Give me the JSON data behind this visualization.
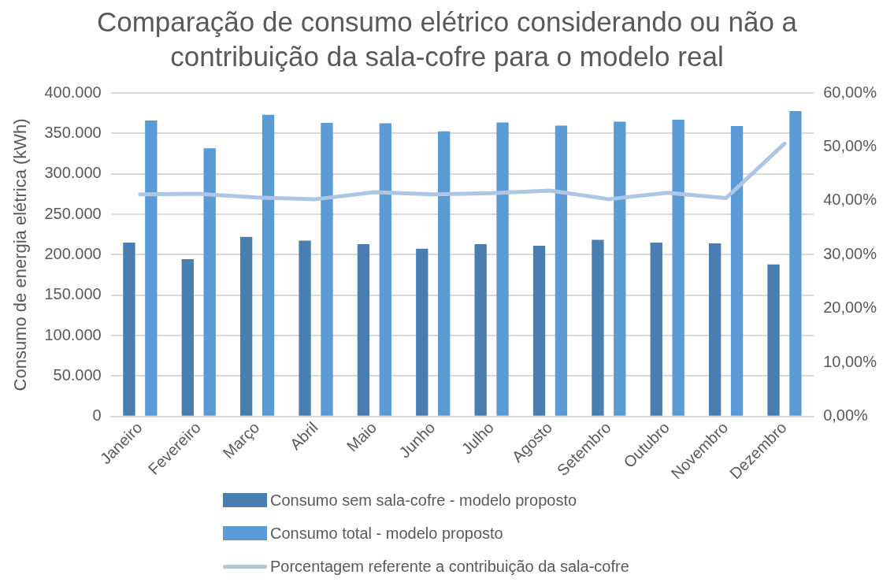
{
  "chart_data": {
    "type": "bar",
    "title": "Comparação de consumo elétrico considerando ou não a contribuição da sala-cofre para o modelo real",
    "ylabel": "Consumo de energia elétrica (kWh)",
    "categories": [
      "Janeiro",
      "Fevereiro",
      "Março",
      "Abril",
      "Maio",
      "Junho",
      "Julho",
      "Agosto",
      "Setembro",
      "Outubro",
      "Novembro",
      "Dezembro"
    ],
    "series": [
      {
        "name": "Consumo sem sala-cofre - modelo proposto",
        "color": "#4a7eb0",
        "values": [
          215000,
          194500,
          222000,
          217500,
          213000,
          207500,
          213000,
          211000,
          218500,
          215000,
          214000,
          188000
        ]
      },
      {
        "name": "Consumo total - modelo proposto",
        "color": "#5b9bd5",
        "values": [
          366000,
          331500,
          373000,
          363000,
          362500,
          352500,
          363500,
          359500,
          364500,
          367000,
          359000,
          377500
        ]
      },
      {
        "name": "Porcentagem referente a contribuição da sala-cofre",
        "type": "line",
        "axis": "y2",
        "color": "#adc6e5",
        "values": [
          41.2,
          41.3,
          40.6,
          40.3,
          41.6,
          41.2,
          41.4,
          41.9,
          40.3,
          41.5,
          40.5,
          50.6
        ]
      }
    ],
    "ylim": [
      0,
      400000
    ],
    "yticks": [
      {
        "value": 0,
        "label": "0"
      },
      {
        "value": 50000,
        "label": "50.000"
      },
      {
        "value": 100000,
        "label": "100.000"
      },
      {
        "value": 150000,
        "label": "150.000"
      },
      {
        "value": 200000,
        "label": "200.000"
      },
      {
        "value": 250000,
        "label": "250.000"
      },
      {
        "value": 300000,
        "label": "300.000"
      },
      {
        "value": 350000,
        "label": "350.000"
      },
      {
        "value": 400000,
        "label": "400.000"
      }
    ],
    "y2lim": [
      0,
      60
    ],
    "y2ticks": [
      {
        "value": 0,
        "label": "0,00%"
      },
      {
        "value": 10,
        "label": "10,00%"
      },
      {
        "value": 20,
        "label": "20,00%"
      },
      {
        "value": 30,
        "label": "30,00%"
      },
      {
        "value": 40,
        "label": "40,00%"
      },
      {
        "value": 50,
        "label": "50,00%"
      },
      {
        "value": 60,
        "label": "60,00%"
      }
    ],
    "grid": "y",
    "legend": "bottom",
    "marker": "none",
    "line_style": "solid"
  }
}
